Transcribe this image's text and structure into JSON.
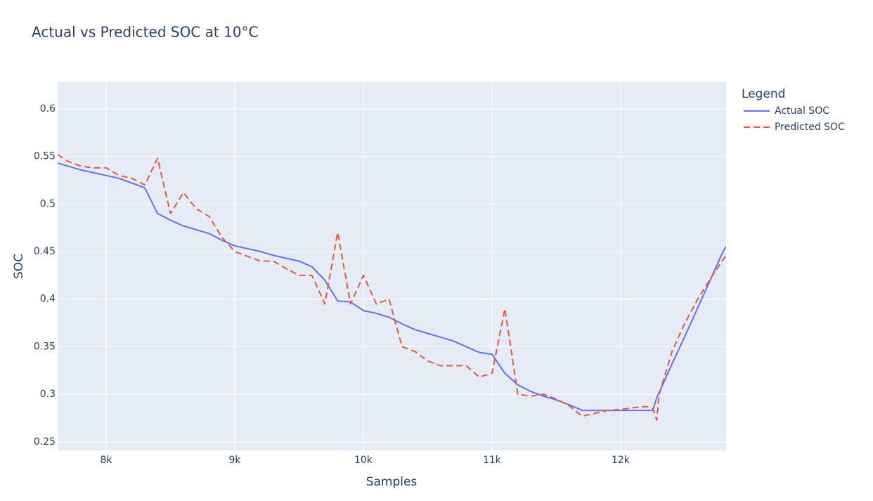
{
  "chart_data": {
    "type": "line",
    "title": "Actual vs Predicted SOC at 10°C",
    "x_label": "Samples",
    "y_label": "SOC",
    "legend_title": "Legend",
    "legend_position": "right",
    "x": [
      7623,
      7700,
      7800,
      7900,
      8000,
      8100,
      8200,
      8300,
      8400,
      8500,
      8600,
      8700,
      8800,
      8900,
      9000,
      9100,
      9200,
      9300,
      9400,
      9500,
      9600,
      9700,
      9800,
      9900,
      10000,
      10100,
      10200,
      10300,
      10400,
      10500,
      10600,
      10700,
      10800,
      10900,
      11000,
      11100,
      11200,
      11300,
      11400,
      11500,
      11600,
      11700,
      11800,
      11900,
      12000,
      12100,
      12200,
      12250,
      12280,
      12300,
      12400,
      12500,
      12600,
      12700,
      12800,
      12820
    ],
    "series": [
      {
        "name": "Actual SOC",
        "color": "#636efa",
        "dash": "solid",
        "values": [
          0.543,
          0.54,
          0.536,
          0.533,
          0.53,
          0.527,
          0.522,
          0.517,
          0.49,
          0.483,
          0.477,
          0.473,
          0.469,
          0.462,
          0.456,
          0.453,
          0.45,
          0.446,
          0.443,
          0.44,
          0.434,
          0.42,
          0.398,
          0.397,
          0.388,
          0.385,
          0.381,
          0.374,
          0.368,
          0.364,
          0.36,
          0.356,
          0.35,
          0.344,
          0.342,
          0.322,
          0.31,
          0.303,
          0.298,
          0.294,
          0.289,
          0.283,
          0.283,
          0.283,
          0.283,
          0.283,
          0.283,
          0.283,
          0.296,
          0.302,
          0.332,
          0.361,
          0.391,
          0.421,
          0.451,
          0.455
        ]
      },
      {
        "name": "Predicted SOC",
        "color": "#EF553B",
        "dash": "dash",
        "values": [
          0.552,
          0.545,
          0.54,
          0.538,
          0.538,
          0.53,
          0.527,
          0.52,
          0.548,
          0.49,
          0.512,
          0.495,
          0.487,
          0.465,
          0.45,
          0.445,
          0.44,
          0.44,
          0.432,
          0.425,
          0.425,
          0.395,
          0.47,
          0.395,
          0.425,
          0.395,
          0.4,
          0.35,
          0.345,
          0.335,
          0.33,
          0.33,
          0.33,
          0.318,
          0.322,
          0.39,
          0.3,
          0.298,
          0.3,
          0.295,
          0.288,
          0.277,
          0.28,
          0.283,
          0.284,
          0.286,
          0.287,
          0.285,
          0.273,
          0.3,
          0.345,
          0.375,
          0.4,
          0.422,
          0.442,
          0.446
        ]
      }
    ],
    "xlim": [
      7623,
      12820
    ],
    "xticks": [
      {
        "value": 8000,
        "label": "8k"
      },
      {
        "value": 9000,
        "label": "9k"
      },
      {
        "value": 10000,
        "label": "10k"
      },
      {
        "value": 11000,
        "label": "11k"
      },
      {
        "value": 12000,
        "label": "12k"
      }
    ],
    "ylim": [
      0.241,
      0.628
    ],
    "yticks": [
      0.25,
      0.3,
      0.35,
      0.4,
      0.45,
      0.5,
      0.55,
      0.6
    ],
    "grid": true
  }
}
